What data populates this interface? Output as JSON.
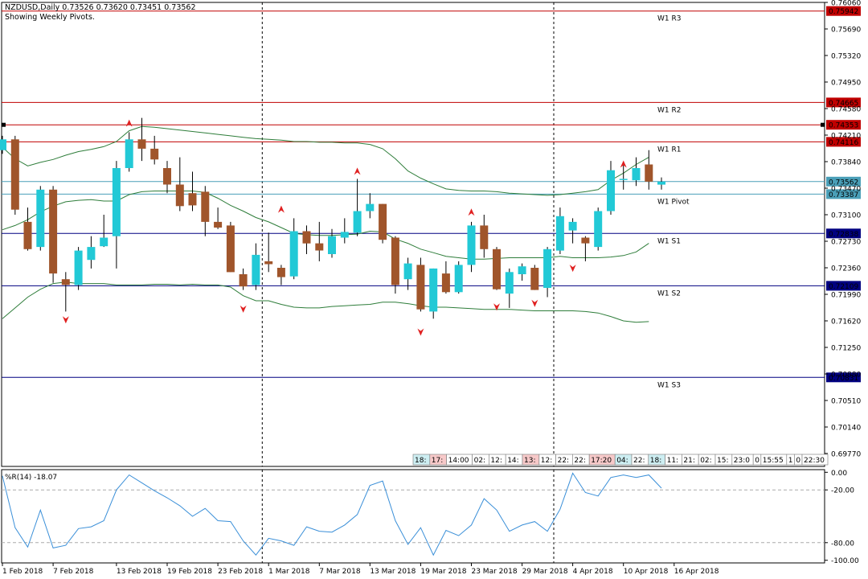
{
  "header": {
    "symbol_line": "NZDUSD,Daily  0.73526 0.73620 0.73451 0.73562",
    "pivots_line": "Showing Weekly Pivots."
  },
  "colors": {
    "bull": "#22c9d6",
    "bear": "#a0552b",
    "band": "#2e7d3a",
    "resistance": "#c00000",
    "support": "#000080",
    "pivot": "#4a9fb8",
    "wpr": "#3a8fd8",
    "grid": "#000000",
    "fractal": "#e02020"
  },
  "chart_data": [
    {
      "type": "candlestick",
      "title": "NZDUSD,Daily",
      "ylim": [
        0.6959,
        0.7606
      ],
      "y_ticks": [
        "0.76060",
        "0.75690",
        "0.75320",
        "0.74950",
        "0.74580",
        "0.74210",
        "0.73840",
        "0.73470",
        "0.73100",
        "0.72730",
        "0.72360",
        "0.71990",
        "0.71620",
        "0.71250",
        "0.70880",
        "0.70510",
        "0.70140",
        "0.69770"
      ],
      "x_labels": [
        {
          "i": 0,
          "text": "1 Feb 2018"
        },
        {
          "i": 4,
          "text": "7 Feb 2018"
        },
        {
          "i": 9,
          "text": "13 Feb 2018"
        },
        {
          "i": 13,
          "text": "19 Feb 2018"
        },
        {
          "i": 17,
          "text": "23 Feb 2018"
        },
        {
          "i": 21,
          "text": "1 Mar 2018"
        },
        {
          "i": 25,
          "text": "7 Mar 2018"
        },
        {
          "i": 29,
          "text": "13 Mar 2018"
        },
        {
          "i": 33,
          "text": "19 Mar 2018"
        },
        {
          "i": 37,
          "text": "23 Mar 2018"
        },
        {
          "i": 41,
          "text": "29 Mar 2018"
        },
        {
          "i": 45,
          "text": "4 Apr 2018"
        },
        {
          "i": 49,
          "text": "10 Apr 2018"
        },
        {
          "i": 53,
          "text": "16 Apr 2018"
        }
      ],
      "period_separators": [
        21,
        44
      ],
      "candles": [
        [
          0.74,
          0.742,
          0.7395,
          0.7415
        ],
        [
          0.7415,
          0.742,
          0.731,
          0.7317
        ],
        [
          0.73,
          0.732,
          0.726,
          0.7262
        ],
        [
          0.7265,
          0.735,
          0.726,
          0.7345
        ],
        [
          0.7345,
          0.735,
          0.7215,
          0.7228
        ],
        [
          0.722,
          0.723,
          0.7175,
          0.7212
        ],
        [
          0.7212,
          0.7265,
          0.7205,
          0.726
        ],
        [
          0.7247,
          0.728,
          0.7235,
          0.7265
        ],
        [
          0.7266,
          0.731,
          0.7265,
          0.7278
        ],
        [
          0.728,
          0.7385,
          0.7235,
          0.7375
        ],
        [
          0.7375,
          0.7425,
          0.737,
          0.7415
        ],
        [
          0.7415,
          0.7445,
          0.7385,
          0.7402
        ],
        [
          0.7402,
          0.742,
          0.738,
          0.7387
        ],
        [
          0.7375,
          0.7385,
          0.734,
          0.7352
        ],
        [
          0.7352,
          0.739,
          0.7315,
          0.7322
        ],
        [
          0.734,
          0.737,
          0.7315,
          0.7323
        ],
        [
          0.7342,
          0.735,
          0.728,
          0.73
        ],
        [
          0.73,
          0.732,
          0.729,
          0.7292
        ],
        [
          0.7295,
          0.73,
          0.723,
          0.723
        ],
        [
          0.7227,
          0.7235,
          0.7205,
          0.721
        ],
        [
          0.7212,
          0.727,
          0.7205,
          0.7254
        ],
        [
          0.7245,
          0.7285,
          0.723,
          0.7241
        ],
        [
          0.7236,
          0.724,
          0.7212,
          0.7223
        ],
        [
          0.7224,
          0.7305,
          0.722,
          0.7287
        ],
        [
          0.7287,
          0.7295,
          0.7255,
          0.727
        ],
        [
          0.727,
          0.73,
          0.7245,
          0.726
        ],
        [
          0.7255,
          0.729,
          0.725,
          0.728
        ],
        [
          0.7278,
          0.7305,
          0.727,
          0.7286
        ],
        [
          0.7285,
          0.736,
          0.728,
          0.7315
        ],
        [
          0.7315,
          0.734,
          0.7305,
          0.7325
        ],
        [
          0.7325,
          0.7325,
          0.727,
          0.7275
        ],
        [
          0.7278,
          0.728,
          0.72,
          0.7212
        ],
        [
          0.722,
          0.725,
          0.7205,
          0.7242
        ],
        [
          0.724,
          0.725,
          0.7175,
          0.7178
        ],
        [
          0.7175,
          0.7235,
          0.7165,
          0.7235
        ],
        [
          0.7228,
          0.7245,
          0.72,
          0.7202
        ],
        [
          0.7202,
          0.7245,
          0.72,
          0.724
        ],
        [
          0.724,
          0.73,
          0.723,
          0.7295
        ],
        [
          0.7295,
          0.731,
          0.725,
          0.7262
        ],
        [
          0.7262,
          0.7265,
          0.7205,
          0.7206
        ],
        [
          0.72,
          0.7235,
          0.718,
          0.723
        ],
        [
          0.7227,
          0.7242,
          0.7218,
          0.7238
        ],
        [
          0.7236,
          0.724,
          0.7205,
          0.7205
        ],
        [
          0.7208,
          0.7265,
          0.7195,
          0.7262
        ],
        [
          0.726,
          0.732,
          0.7255,
          0.7308
        ],
        [
          0.7288,
          0.7305,
          0.727,
          0.73
        ],
        [
          0.7278,
          0.728,
          0.7245,
          0.727
        ],
        [
          0.7265,
          0.732,
          0.726,
          0.7315
        ],
        [
          0.7315,
          0.7385,
          0.731,
          0.7372
        ],
        [
          0.736,
          0.738,
          0.7345,
          0.736
        ],
        [
          0.7358,
          0.739,
          0.735,
          0.7375
        ],
        [
          0.738,
          0.74,
          0.7345,
          0.7356
        ],
        [
          0.7352,
          0.7362,
          0.7345,
          0.7356
        ]
      ],
      "fractals_up": [
        {
          "i": 10,
          "y": 0.7436
        },
        {
          "i": 22,
          "y": 0.7316
        },
        {
          "i": 28,
          "y": 0.7369
        },
        {
          "i": 37,
          "y": 0.7312
        },
        {
          "i": 49,
          "y": 0.7379
        }
      ],
      "fractals_down": [
        {
          "i": 5,
          "y": 0.7165
        },
        {
          "i": 19,
          "y": 0.718
        },
        {
          "i": 33,
          "y": 0.7148
        },
        {
          "i": 39,
          "y": 0.7183
        },
        {
          "i": 42,
          "y": 0.7188
        },
        {
          "i": 45,
          "y": 0.7237
        }
      ],
      "bands": {
        "upper": [
          0.7404,
          0.7388,
          0.7378,
          0.7383,
          0.7387,
          0.7393,
          0.7398,
          0.7401,
          0.7405,
          0.7412,
          0.7427,
          0.7433,
          0.7432,
          0.743,
          0.7428,
          0.7426,
          0.7424,
          0.7422,
          0.742,
          0.7418,
          0.7416,
          0.7415,
          0.7414,
          0.7412,
          0.7412,
          0.7411,
          0.7411,
          0.741,
          0.741,
          0.7408,
          0.7402,
          0.7388,
          0.7371,
          0.7361,
          0.7353,
          0.7346,
          0.7344,
          0.7343,
          0.7343,
          0.7342,
          0.734,
          0.7339,
          0.7338,
          0.7337,
          0.7338,
          0.734,
          0.7342,
          0.7345,
          0.7358,
          0.7368,
          0.738,
          0.739
        ],
        "middle": [
          0.7289,
          0.7295,
          0.7303,
          0.7314,
          0.7322,
          0.7328,
          0.733,
          0.7331,
          0.7329,
          0.7329,
          0.7338,
          0.7342,
          0.7343,
          0.7343,
          0.7343,
          0.7343,
          0.7341,
          0.7333,
          0.7323,
          0.7315,
          0.7306,
          0.73,
          0.7292,
          0.7284,
          0.7282,
          0.7281,
          0.7281,
          0.7282,
          0.7283,
          0.7287,
          0.7286,
          0.7276,
          0.727,
          0.7262,
          0.7257,
          0.7252,
          0.725,
          0.7248,
          0.7248,
          0.7249,
          0.725,
          0.725,
          0.725,
          0.725,
          0.7252,
          0.725,
          0.725,
          0.725,
          0.7251,
          0.7253,
          0.7258,
          0.727
        ],
        "lower": [
          0.7165,
          0.718,
          0.7195,
          0.7206,
          0.7214,
          0.7216,
          0.7214,
          0.7214,
          0.7214,
          0.7212,
          0.7212,
          0.7212,
          0.7213,
          0.7213,
          0.7212,
          0.7213,
          0.7212,
          0.7212,
          0.7209,
          0.7197,
          0.719,
          0.719,
          0.7185,
          0.7181,
          0.718,
          0.718,
          0.7182,
          0.7183,
          0.7184,
          0.7185,
          0.7188,
          0.7188,
          0.7186,
          0.7183,
          0.7181,
          0.7181,
          0.718,
          0.7179,
          0.7178,
          0.7178,
          0.7178,
          0.7177,
          0.7176,
          0.7176,
          0.7176,
          0.7176,
          0.7175,
          0.7173,
          0.7168,
          0.7162,
          0.716,
          0.7161
        ]
      },
      "pivot_levels": [
        {
          "name": "W1 R3",
          "label": "W1  R3",
          "value": 0.7594,
          "tag": "0.75942",
          "kind": "resistance"
        },
        {
          "name": "W1 R2",
          "label": "W1  R2",
          "value": 0.74665,
          "tag": "0.74665",
          "kind": "resistance"
        },
        {
          "name": "W1 R1",
          "label": "W1  R1",
          "value": 0.74116,
          "tag": "0.74116",
          "kind": "resistance"
        },
        {
          "name": "W1 Pivot",
          "label": "W1  Pivot",
          "value": 0.73387,
          "tag": "0.73387",
          "kind": "pivot"
        },
        {
          "name": "W1 S1",
          "label": "W1  S1",
          "value": 0.72838,
          "tag": "0.72838",
          "kind": "support"
        },
        {
          "name": "W1 S2",
          "label": "W1  S2",
          "value": 0.72109,
          "tag": "0.72109",
          "kind": "support"
        },
        {
          "name": "W1 S3",
          "label": "W1  S3",
          "value": 0.70831,
          "tag": "0.70831",
          "kind": "support"
        }
      ],
      "marker_line": {
        "value": 0.74353,
        "tag": "0.74353"
      },
      "price_line": {
        "value": 0.73562,
        "tag": "0.73562"
      },
      "tick_tags": [
        "18:",
        "17:",
        "14:00",
        "02:",
        "12:",
        "14:",
        "13:",
        "12:",
        "22:",
        "22:",
        "17:20",
        "04:",
        "22:",
        "18:",
        "11:",
        "21:",
        "02:",
        "15:",
        "23:0",
        "0",
        "15:55",
        "1",
        "0",
        "22:30"
      ]
    },
    {
      "type": "line",
      "title": "%R(14) -18.07",
      "ylim": [
        -103,
        3
      ],
      "y_ticks": [
        "0.00",
        "-20.00",
        "-80.00",
        "-100.00"
      ],
      "levels": [
        -20,
        -80
      ],
      "values": [
        -4,
        -63,
        -85,
        -43,
        -86,
        -83,
        -64,
        -62,
        -55,
        -20,
        -3,
        -12,
        -21,
        -29,
        -38,
        -50,
        -41,
        -55,
        -56,
        -78,
        -94,
        -75,
        -78,
        -83,
        -62,
        -67,
        -68,
        -60,
        -48,
        -15,
        -10,
        -55,
        -82,
        -63,
        -94,
        -66,
        -72,
        -60,
        -30,
        -43,
        -67,
        -60,
        -56,
        -67,
        -42,
        -1,
        -23,
        -27,
        -6,
        -3,
        -6,
        -3,
        -18
      ]
    }
  ]
}
